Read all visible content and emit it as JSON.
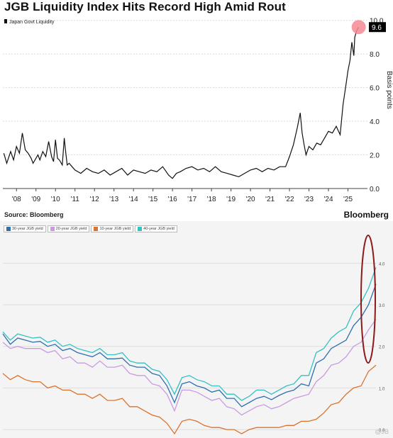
{
  "title": "JGB Liquidity Index Hits Record High Amid Rout",
  "source": "Source: Bloomberg",
  "brand": "Bloomberg",
  "watermark": "@JB",
  "colors": {
    "liquidity_line": "#111111",
    "marker": "#f58a94",
    "grid": "#d9d9d9",
    "y30": "#2e6fb0",
    "y20": "#c89be0",
    "y10": "#d9732e",
    "y40": "#35c1c4",
    "highlight_oval": "#8b1a1a"
  },
  "chart_data": [
    {
      "type": "line",
      "title": "JGB Liquidity Index Hits Record High Amid Rout",
      "legend": [
        "Japan Govt Liquidity"
      ],
      "legend_position": "top-left",
      "xlim": [
        2007.3,
        2026.0
      ],
      "ylim": [
        0.0,
        10.2
      ],
      "x_ticks": [
        2008,
        2009,
        2010,
        2011,
        2012,
        2013,
        2014,
        2015,
        2016,
        2017,
        2018,
        2019,
        2020,
        2021,
        2022,
        2023,
        2024,
        2025
      ],
      "x_tick_labels": [
        "'08",
        "'09",
        "'10",
        "'11",
        "'12",
        "'13",
        "'14",
        "'15",
        "'16",
        "'17",
        "'18",
        "'19",
        "'20",
        "'21",
        "'22",
        "'23",
        "'24",
        "'25"
      ],
      "y_ticks": [
        0.0,
        2.0,
        4.0,
        6.0,
        8.0,
        10.0
      ],
      "y_tick_labels": [
        "0.0",
        "2.0",
        "4.0",
        "6.0",
        "8.0",
        "10.0"
      ],
      "ylabel_fragment": "Basis points",
      "grid": true,
      "last_value_label": "9.6",
      "series": [
        {
          "name": "Japan Govt Liquidity",
          "x": [
            2007.35,
            2007.5,
            2007.7,
            2007.85,
            2008.0,
            2008.15,
            2008.3,
            2008.45,
            2008.6,
            2008.75,
            2008.85,
            2009.0,
            2009.1,
            2009.2,
            2009.35,
            2009.5,
            2009.65,
            2009.8,
            2009.9,
            2010.0,
            2010.1,
            2010.2,
            2010.35,
            2010.45,
            2010.5,
            2010.6,
            2010.7,
            2010.85,
            2011.0,
            2011.3,
            2011.6,
            2011.9,
            2012.2,
            2012.5,
            2012.8,
            2013.1,
            2013.4,
            2013.7,
            2014.0,
            2014.3,
            2014.6,
            2014.9,
            2015.2,
            2015.5,
            2015.8,
            2016.0,
            2016.2,
            2016.4,
            2016.7,
            2017.0,
            2017.3,
            2017.6,
            2017.9,
            2018.2,
            2018.5,
            2018.8,
            2019.1,
            2019.4,
            2019.7,
            2020.0,
            2020.3,
            2020.6,
            2020.9,
            2021.2,
            2021.5,
            2021.8,
            2022.0,
            2022.2,
            2022.4,
            2022.55,
            2022.65,
            2022.75,
            2022.85,
            2023.0,
            2023.2,
            2023.4,
            2023.6,
            2023.8,
            2024.0,
            2024.2,
            2024.4,
            2024.6,
            2024.75,
            2024.9,
            2025.0,
            2025.1,
            2025.2,
            2025.3,
            2025.35,
            2025.45,
            2025.55
          ],
          "y": [
            2.1,
            1.5,
            2.2,
            1.7,
            2.5,
            2.1,
            3.3,
            2.3,
            2.1,
            1.8,
            1.5,
            1.8,
            2.0,
            1.7,
            2.2,
            1.9,
            2.8,
            1.9,
            1.6,
            2.9,
            1.8,
            1.7,
            1.4,
            3.0,
            2.4,
            1.4,
            1.5,
            1.3,
            1.1,
            0.9,
            1.2,
            1.0,
            0.9,
            1.1,
            0.8,
            1.0,
            1.2,
            0.8,
            1.1,
            1.0,
            0.9,
            1.1,
            1.0,
            1.3,
            0.8,
            0.6,
            0.9,
            1.0,
            1.2,
            1.3,
            1.1,
            1.2,
            1.0,
            1.3,
            1.0,
            0.9,
            0.8,
            0.7,
            0.9,
            1.1,
            1.2,
            1.0,
            1.2,
            1.1,
            1.3,
            1.3,
            1.9,
            2.6,
            3.6,
            4.5,
            3.3,
            2.6,
            2.0,
            2.5,
            2.3,
            2.7,
            2.6,
            3.0,
            3.4,
            3.3,
            3.7,
            3.2,
            5.0,
            6.2,
            7.0,
            7.6,
            8.7,
            7.9,
            9.0,
            9.4,
            9.6
          ]
        }
      ]
    },
    {
      "type": "line",
      "legend": [
        "30-year JGB yield",
        "20-year JGB yield",
        "10-year JGB yield",
        "40-year JGB yield"
      ],
      "legend_position": "top-left",
      "y_ticks": [
        0.0,
        1.0,
        2.0,
        3.0,
        4.0
      ],
      "y_tick_labels": [
        "0.0",
        "1.0",
        "2.0",
        "3.0",
        "4.0"
      ],
      "ylim": [
        -0.1,
        4.5
      ],
      "grid": true,
      "annotation": "red oval around latest readings",
      "x": [
        0,
        2,
        4,
        6,
        8,
        10,
        12,
        14,
        16,
        18,
        20,
        22,
        24,
        26,
        28,
        30,
        32,
        34,
        36,
        38,
        40,
        42,
        44,
        46,
        48,
        50,
        52,
        54,
        56,
        58,
        60,
        62,
        64,
        66,
        68,
        70,
        72,
        74,
        76,
        78,
        80,
        82,
        84,
        86,
        88,
        90,
        92,
        94,
        96,
        98,
        100
      ],
      "series": [
        {
          "name": "30-year JGB yield",
          "values": [
            2.3,
            2.05,
            2.2,
            2.15,
            2.1,
            2.12,
            2.0,
            2.05,
            1.9,
            1.95,
            1.85,
            1.8,
            1.75,
            1.85,
            1.7,
            1.7,
            1.72,
            1.55,
            1.5,
            1.5,
            1.35,
            1.3,
            1.05,
            0.65,
            1.1,
            1.15,
            1.05,
            1.0,
            0.9,
            0.95,
            0.75,
            0.75,
            0.55,
            0.65,
            0.75,
            0.8,
            0.72,
            0.82,
            0.9,
            0.95,
            1.1,
            1.05,
            1.6,
            1.7,
            1.95,
            2.05,
            2.15,
            2.5,
            2.7,
            3.0,
            3.5
          ]
        },
        {
          "name": "20-year JGB yield",
          "values": [
            2.1,
            1.95,
            2.0,
            1.95,
            1.95,
            1.95,
            1.85,
            1.9,
            1.7,
            1.75,
            1.6,
            1.6,
            1.5,
            1.65,
            1.5,
            1.5,
            1.55,
            1.35,
            1.3,
            1.3,
            1.1,
            1.05,
            0.85,
            0.45,
            0.95,
            0.95,
            0.9,
            0.8,
            0.7,
            0.75,
            0.55,
            0.5,
            0.35,
            0.45,
            0.55,
            0.6,
            0.5,
            0.55,
            0.65,
            0.75,
            0.8,
            0.85,
            1.15,
            1.3,
            1.55,
            1.6,
            1.75,
            2.0,
            2.1,
            2.4,
            2.65
          ]
        },
        {
          "name": "10-year JGB yield",
          "values": [
            1.35,
            1.2,
            1.3,
            1.2,
            1.15,
            1.15,
            1.0,
            1.05,
            0.95,
            0.95,
            0.85,
            0.85,
            0.75,
            0.85,
            0.7,
            0.7,
            0.75,
            0.55,
            0.55,
            0.45,
            0.35,
            0.3,
            0.15,
            -0.1,
            0.2,
            0.25,
            0.2,
            0.1,
            0.05,
            0.05,
            0.0,
            0.0,
            -0.1,
            0.0,
            0.05,
            0.05,
            0.05,
            0.05,
            0.1,
            0.1,
            0.2,
            0.2,
            0.25,
            0.4,
            0.6,
            0.65,
            0.85,
            1.0,
            1.05,
            1.4,
            1.55
          ]
        },
        {
          "name": "40-year JGB yield",
          "values": [
            2.35,
            2.15,
            2.3,
            2.25,
            2.2,
            2.22,
            2.1,
            2.15,
            2.0,
            2.05,
            1.95,
            1.9,
            1.85,
            1.95,
            1.8,
            1.8,
            1.85,
            1.65,
            1.6,
            1.6,
            1.45,
            1.4,
            1.2,
            0.85,
            1.25,
            1.3,
            1.2,
            1.15,
            1.05,
            1.05,
            0.85,
            0.85,
            0.7,
            0.8,
            0.95,
            0.95,
            0.85,
            0.95,
            1.05,
            1.1,
            1.3,
            1.3,
            1.85,
            1.95,
            2.2,
            2.35,
            2.45,
            2.85,
            3.05,
            3.4,
            3.9
          ]
        }
      ]
    }
  ]
}
